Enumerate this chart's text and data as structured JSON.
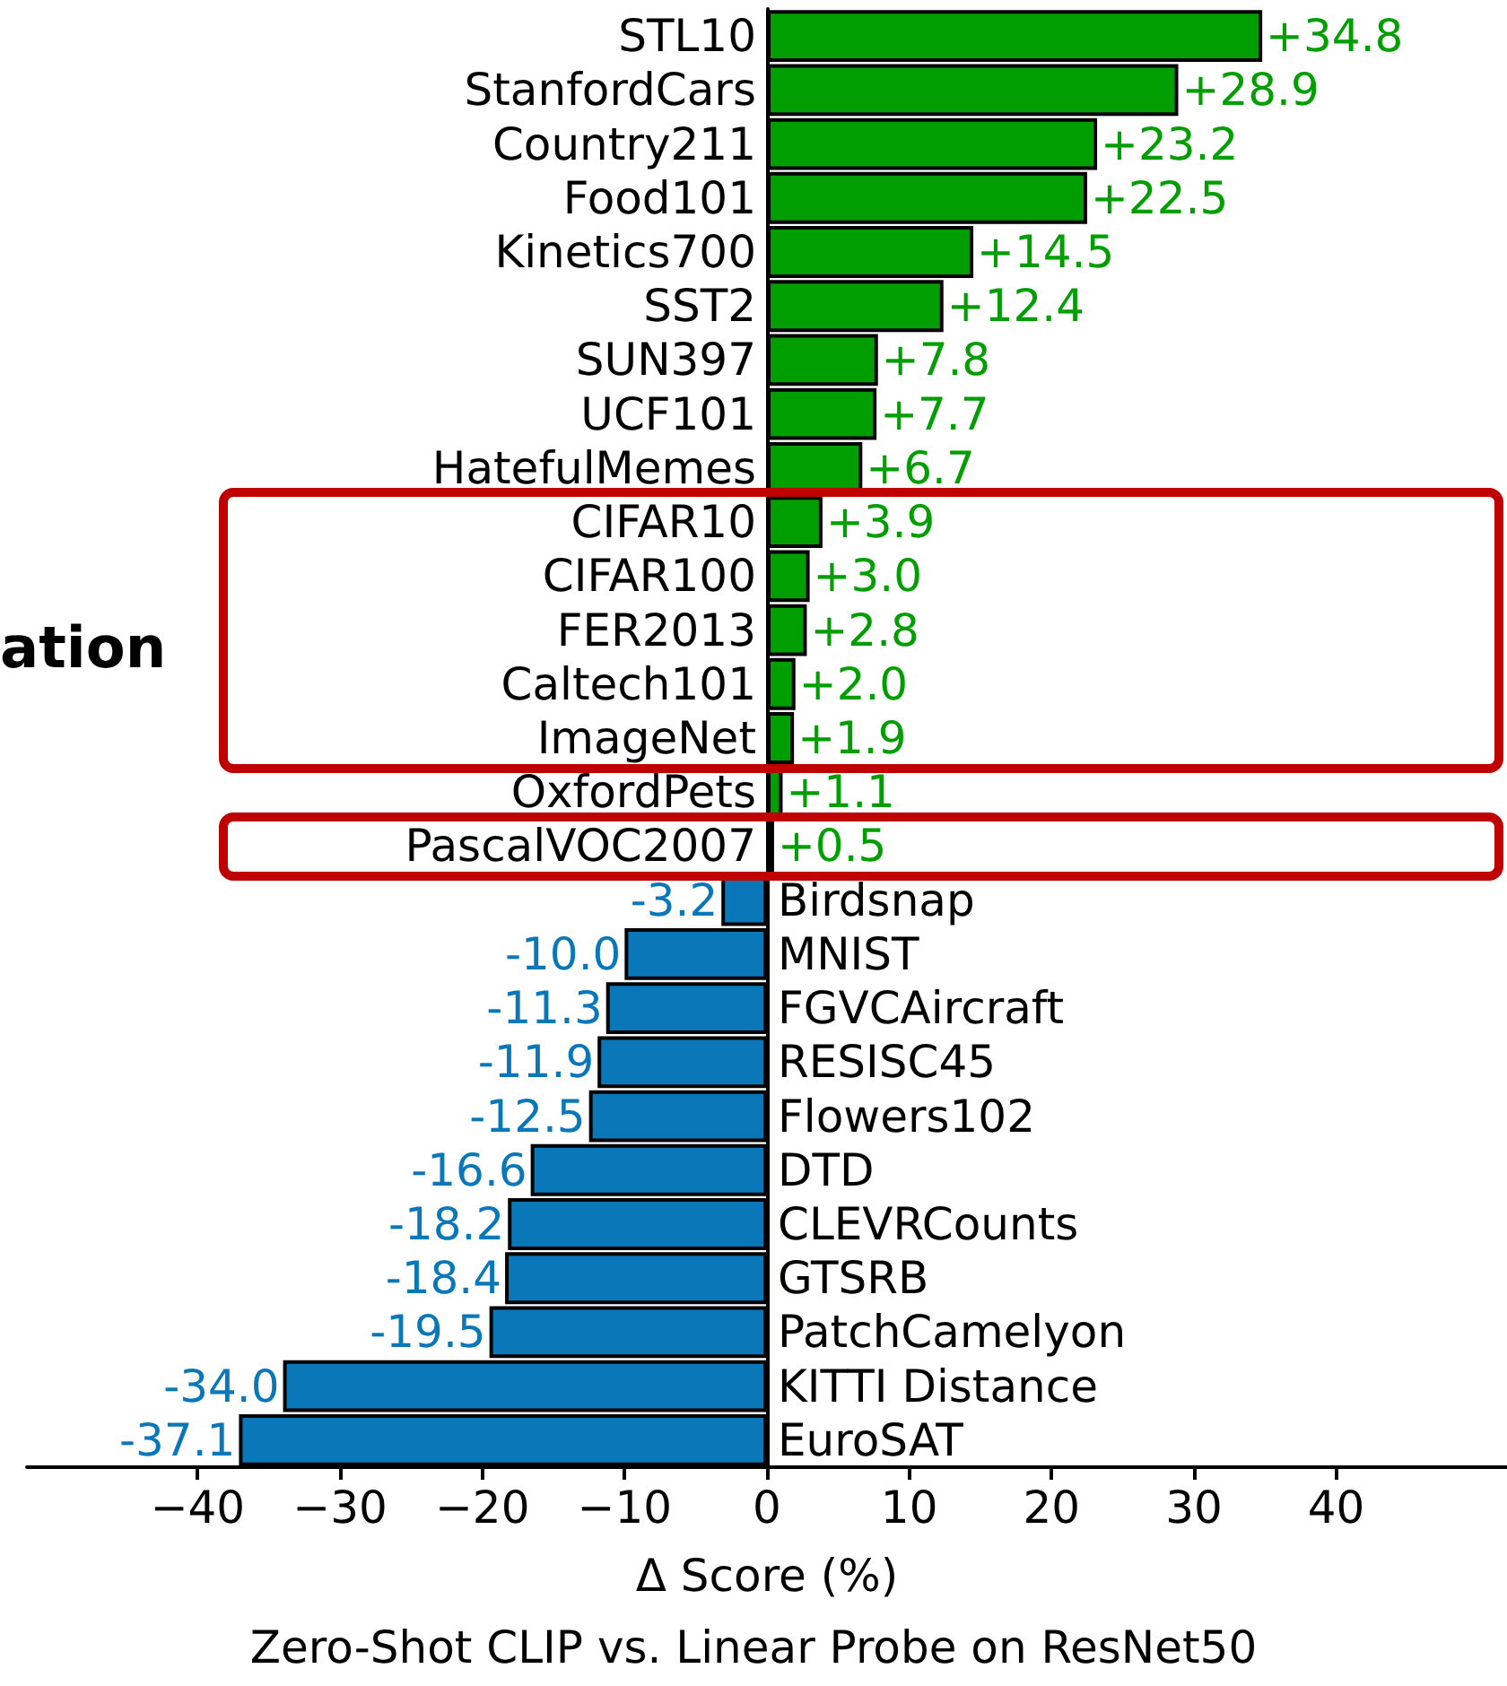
{
  "chart_data": {
    "type": "bar",
    "orientation": "horizontal",
    "title": "Zero-Shot CLIP vs. Linear Probe on ResNet50",
    "xlabel": "Δ Score (%)",
    "categories": [
      "STL10",
      "StanfordCars",
      "Country211",
      "Food101",
      "Kinetics700",
      "SST2",
      "SUN397",
      "UCF101",
      "HatefulMemes",
      "CIFAR10",
      "CIFAR100",
      "FER2013",
      "Caltech101",
      "ImageNet",
      "OxfordPets",
      "PascalVOC2007",
      "Birdsnap",
      "MNIST",
      "FGVCAircraft",
      "RESISC45",
      "Flowers102",
      "DTD",
      "CLEVRCounts",
      "GTSRB",
      "PatchCamelyon",
      "KITTI Distance",
      "EuroSAT"
    ],
    "values": [
      34.8,
      28.9,
      23.2,
      22.5,
      14.5,
      12.4,
      7.8,
      7.7,
      6.7,
      3.9,
      3.0,
      2.8,
      2.0,
      1.9,
      1.1,
      0.5,
      -3.2,
      -10.0,
      -11.3,
      -11.9,
      -12.5,
      -16.6,
      -18.2,
      -18.4,
      -19.5,
      -34.0,
      -37.1
    ],
    "value_labels": [
      "+34.8",
      "+28.9",
      "+23.2",
      "+22.5",
      "+14.5",
      "+12.4",
      "+7.8",
      "+7.7",
      "+6.7",
      "+3.9",
      "+3.0",
      "+2.8",
      "+2.0",
      "+1.9",
      "+1.1",
      "+0.5",
      "-3.2",
      "-10.0",
      "-11.3",
      "-11.9",
      "-12.5",
      "-16.6",
      "-18.2",
      "-18.4",
      "-19.5",
      "-34.0",
      "-37.1"
    ],
    "colors": [
      "#009e00",
      "#009e00",
      "#009e00",
      "#009e00",
      "#009e00",
      "#009e00",
      "#009e00",
      "#009e00",
      "#009e00",
      "#009e00",
      "#009e00",
      "#009e00",
      "#009e00",
      "#009e00",
      "#009e00",
      "#009e00",
      "#0a77b8",
      "#0a77b8",
      "#0a77b8",
      "#0a77b8",
      "#0a77b8",
      "#0a77b8",
      "#0a77b8",
      "#0a77b8",
      "#0a77b8",
      "#0a77b8",
      "#0a77b8"
    ],
    "xlim": [
      -52,
      52
    ],
    "xticks": [
      {
        "value": -40,
        "label": "−40"
      },
      {
        "value": -30,
        "label": "−30"
      },
      {
        "value": -20,
        "label": "−20"
      },
      {
        "value": -10,
        "label": "−10"
      },
      0,
      10,
      20,
      30,
      40
    ],
    "annotations": [
      "ation"
    ]
  }
}
